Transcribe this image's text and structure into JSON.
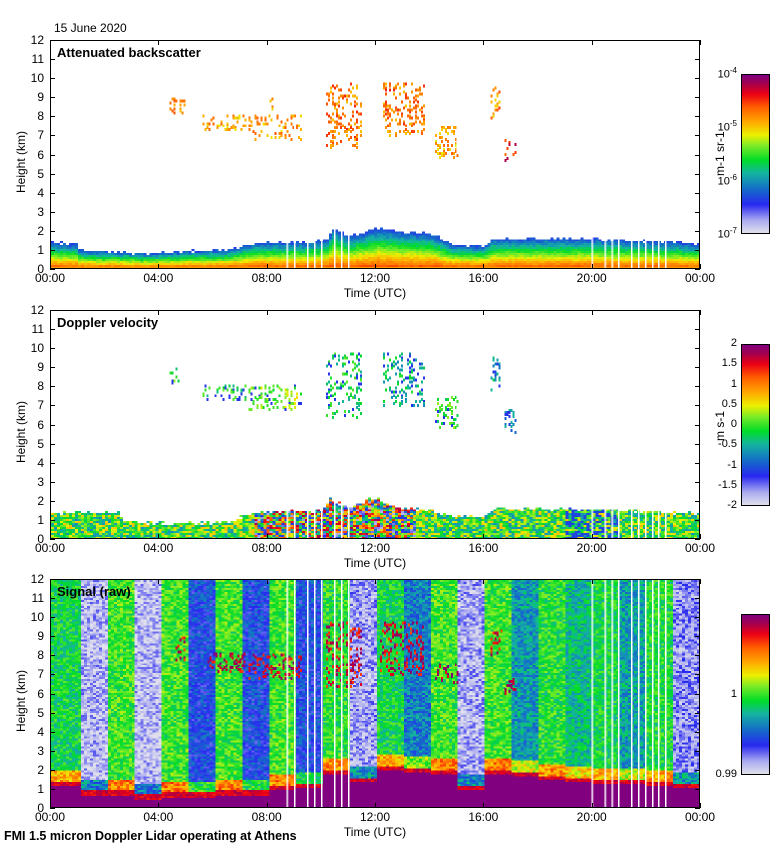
{
  "header": {
    "date": "15 June 2020"
  },
  "footer": {
    "caption": "FMI 1.5 micron Doppler Lidar operating at Athens"
  },
  "chart_data": [
    {
      "type": "heatmap",
      "title": "Attenuated backscatter",
      "xlabel": "Time (UTC)",
      "ylabel": "Height (km)",
      "x_ticks": [
        "00:00",
        "04:00",
        "08:00",
        "12:00",
        "16:00",
        "20:00",
        "00:00"
      ],
      "y_ticks": [
        "0",
        "1",
        "2",
        "3",
        "4",
        "5",
        "6",
        "7",
        "8",
        "9",
        "10",
        "11",
        "12"
      ],
      "xlim_hours": [
        0,
        24
      ],
      "ylim_km": [
        0,
        12
      ],
      "colorbar": {
        "label": "m-1 sr-1",
        "scale": "log",
        "range": [
          1e-07,
          0.0001
        ],
        "tick_labels": [
          {
            "base": "10",
            "exp": "-4",
            "value": 0.0001
          },
          {
            "base": "10",
            "exp": "-5",
            "value": 1e-05
          },
          {
            "base": "10",
            "exp": "-6",
            "value": 1e-06
          },
          {
            "base": "10",
            "exp": "-7",
            "value": 1e-07
          }
        ]
      },
      "boundary_layer_top_km": [
        [
          0,
          1.4
        ],
        [
          0.9,
          1.3
        ],
        [
          1.0,
          1.0
        ],
        [
          2.5,
          0.9
        ],
        [
          3.5,
          0.8
        ],
        [
          4.5,
          0.9
        ],
        [
          6.5,
          1.0
        ],
        [
          7.5,
          1.4
        ],
        [
          9.5,
          1.4
        ],
        [
          10.2,
          1.6
        ],
        [
          10.4,
          2.2
        ],
        [
          11.0,
          1.7
        ],
        [
          12.0,
          2.2
        ],
        [
          13.0,
          2.0
        ],
        [
          14.0,
          1.9
        ],
        [
          14.8,
          1.3
        ],
        [
          16.0,
          1.2
        ],
        [
          16.3,
          1.6
        ],
        [
          20.0,
          1.6
        ],
        [
          23.0,
          1.4
        ],
        [
          24.0,
          1.3
        ]
      ],
      "cloud_layers": [
        {
          "t": [
            4.4,
            5.0
          ],
          "z": [
            8.2,
            9.0
          ],
          "level": 0.72
        },
        {
          "t": [
            5.6,
            7.2
          ],
          "z": [
            7.3,
            8.1
          ],
          "level": 0.7
        },
        {
          "t": [
            7.3,
            9.3
          ],
          "z": [
            6.8,
            8.1
          ],
          "level": 0.72
        },
        {
          "t": [
            8.0,
            8.3
          ],
          "z": [
            8.4,
            9.2
          ],
          "level": 0.72
        },
        {
          "t": [
            10.2,
            11.5
          ],
          "z": [
            6.4,
            9.8
          ],
          "level": 0.76
        },
        {
          "t": [
            12.3,
            13.8
          ],
          "z": [
            7.0,
            9.8
          ],
          "level": 0.76
        },
        {
          "t": [
            14.2,
            15.1
          ],
          "z": [
            5.8,
            7.5
          ],
          "level": 0.7
        },
        {
          "t": [
            16.3,
            16.6
          ],
          "z": [
            7.8,
            9.6
          ],
          "level": 0.74
        },
        {
          "t": [
            16.8,
            17.2
          ],
          "z": [
            5.6,
            6.8
          ],
          "level": 0.86
        }
      ],
      "missing_profiles_hours": [
        8.7,
        9.0,
        9.5,
        9.75,
        10.0,
        10.5,
        10.75,
        11.0,
        20.0,
        20.5,
        20.75,
        21.0,
        21.5,
        21.75,
        22.0,
        22.25,
        22.5,
        22.75
      ]
    },
    {
      "type": "heatmap",
      "title": "Doppler velocity",
      "xlabel": "Time (UTC)",
      "ylabel": "Height (km)",
      "x_ticks": [
        "00:00",
        "04:00",
        "08:00",
        "12:00",
        "16:00",
        "20:00",
        "00:00"
      ],
      "y_ticks": [
        "0",
        "1",
        "2",
        "3",
        "4",
        "5",
        "6",
        "7",
        "8",
        "9",
        "10",
        "11",
        "12"
      ],
      "xlim_hours": [
        0,
        24
      ],
      "ylim_km": [
        0,
        12
      ],
      "colorbar": {
        "label": "m s-1",
        "scale": "linear",
        "range": [
          -2,
          2
        ],
        "tick_labels": [
          "2",
          "1.5",
          "1",
          "0.5",
          "0",
          "-0.5",
          "-1",
          "-1.5",
          "-2"
        ]
      },
      "boundary_layer_top_km": [
        [
          0,
          1.4
        ],
        [
          2.5,
          1.4
        ],
        [
          2.6,
          0.9
        ],
        [
          4.5,
          0.8
        ],
        [
          6.5,
          0.9
        ],
        [
          7.5,
          1.4
        ],
        [
          10.0,
          1.5
        ],
        [
          10.3,
          2.1
        ],
        [
          11.0,
          1.6
        ],
        [
          11.9,
          2.2
        ],
        [
          12.7,
          1.7
        ],
        [
          14.0,
          1.5
        ],
        [
          14.8,
          1.2
        ],
        [
          16.0,
          1.2
        ],
        [
          16.3,
          1.6
        ],
        [
          20.0,
          1.6
        ],
        [
          23.0,
          1.4
        ],
        [
          24.0,
          1.3
        ]
      ],
      "cloud_layers": [
        {
          "t": [
            4.4,
            5.0
          ],
          "z": [
            8.2,
            9.0
          ],
          "level": 0.5
        },
        {
          "t": [
            5.6,
            7.2
          ],
          "z": [
            7.3,
            8.1
          ],
          "level": 0.45
        },
        {
          "t": [
            7.3,
            9.3
          ],
          "z": [
            6.8,
            8.1
          ],
          "level": 0.55
        },
        {
          "t": [
            10.2,
            11.5
          ],
          "z": [
            6.4,
            9.8
          ],
          "level": 0.45
        },
        {
          "t": [
            12.3,
            13.8
          ],
          "z": [
            7.0,
            9.8
          ],
          "level": 0.4
        },
        {
          "t": [
            14.2,
            15.1
          ],
          "z": [
            5.8,
            7.5
          ],
          "level": 0.5
        },
        {
          "t": [
            16.3,
            16.6
          ],
          "z": [
            7.8,
            9.6
          ],
          "level": 0.35
        },
        {
          "t": [
            16.8,
            17.2
          ],
          "z": [
            5.6,
            6.8
          ],
          "level": 0.3
        }
      ],
      "missing_profiles_hours": [
        8.7,
        9.0,
        9.5,
        9.75,
        10.0,
        10.5,
        10.75,
        11.0,
        20.0,
        20.5,
        20.75,
        21.0,
        21.5,
        21.75,
        22.0,
        22.25,
        22.5,
        22.75
      ]
    },
    {
      "type": "heatmap",
      "title": "Signal (raw)",
      "xlabel": "Time (UTC)",
      "ylabel": "Height (km)",
      "x_ticks": [
        "00:00",
        "04:00",
        "08:00",
        "12:00",
        "16:00",
        "20:00",
        "00:00"
      ],
      "y_ticks": [
        "0",
        "1",
        "2",
        "3",
        "4",
        "5",
        "6",
        "7",
        "8",
        "9",
        "10",
        "11",
        "12"
      ],
      "xlim_hours": [
        0,
        24
      ],
      "ylim_km": [
        0,
        12
      ],
      "colorbar": {
        "label": "",
        "scale": "linear",
        "range": [
          0.99,
          1.01
        ],
        "tick_labels": [
          "1",
          "0.99"
        ]
      },
      "background_segments": [
        {
          "t": [
            0,
            1.0
          ],
          "level": 0.45,
          "pbl": 1.4
        },
        {
          "t": [
            1.0,
            2.0
          ],
          "level": 0.06,
          "pbl": 0.9
        },
        {
          "t": [
            2.0,
            3.0
          ],
          "level": 0.5,
          "pbl": 0.9
        },
        {
          "t": [
            3.0,
            4.0
          ],
          "level": 0.05,
          "pbl": 0.7
        },
        {
          "t": [
            4.0,
            5.0
          ],
          "level": 0.5,
          "pbl": 0.8
        },
        {
          "t": [
            5.0,
            6.0
          ],
          "level": 0.22,
          "pbl": 0.8
        },
        {
          "t": [
            6.0,
            7.0
          ],
          "level": 0.5,
          "pbl": 0.9
        },
        {
          "t": [
            7.0,
            8.0
          ],
          "level": 0.22,
          "pbl": 0.9
        },
        {
          "t": [
            8.0,
            9.0
          ],
          "level": 0.5,
          "pbl": 1.2
        },
        {
          "t": [
            9.0,
            10.0
          ],
          "level": 0.22,
          "pbl": 1.3
        },
        {
          "t": [
            10.0,
            11.0
          ],
          "level": 0.48,
          "pbl": 2.0
        },
        {
          "t": [
            11.0,
            12.0
          ],
          "level": 0.08,
          "pbl": 1.6
        },
        {
          "t": [
            12.0,
            13.0
          ],
          "level": 0.45,
          "pbl": 2.2
        },
        {
          "t": [
            13.0,
            14.0
          ],
          "level": 0.3,
          "pbl": 2.1
        },
        {
          "t": [
            14.0,
            15.0
          ],
          "level": 0.5,
          "pbl": 2.0
        },
        {
          "t": [
            15.0,
            16.0
          ],
          "level": 0.07,
          "pbl": 1.2
        },
        {
          "t": [
            16.0,
            17.0
          ],
          "level": 0.5,
          "pbl": 2.0
        },
        {
          "t": [
            17.0,
            18.0
          ],
          "level": 0.34,
          "pbl": 1.9
        },
        {
          "t": [
            18.0,
            19.0
          ],
          "level": 0.48,
          "pbl": 1.7
        },
        {
          "t": [
            19.0,
            20.0
          ],
          "level": 0.4,
          "pbl": 1.6
        },
        {
          "t": [
            20.0,
            21.0
          ],
          "level": 0.45,
          "pbl": 1.5
        },
        {
          "t": [
            21.0,
            22.0
          ],
          "level": 0.35,
          "pbl": 1.5
        },
        {
          "t": [
            22.0,
            23.0
          ],
          "level": 0.47,
          "pbl": 1.4
        },
        {
          "t": [
            23.0,
            24.0
          ],
          "level": 0.1,
          "pbl": 1.3
        }
      ],
      "cloud_layers": [
        {
          "t": [
            4.6,
            5.0
          ],
          "z": [
            7.8,
            9.0
          ],
          "level": 0.9
        },
        {
          "t": [
            5.8,
            7.2
          ],
          "z": [
            7.2,
            8.2
          ],
          "level": 0.92
        },
        {
          "t": [
            7.3,
            9.3
          ],
          "z": [
            6.8,
            8.1
          ],
          "level": 0.92
        },
        {
          "t": [
            10.2,
            11.5
          ],
          "z": [
            6.4,
            9.8
          ],
          "level": 0.9
        },
        {
          "t": [
            12.2,
            13.8
          ],
          "z": [
            7.0,
            9.8
          ],
          "level": 0.9
        },
        {
          "t": [
            14.2,
            15.1
          ],
          "z": [
            6.6,
            7.6
          ],
          "level": 0.95
        },
        {
          "t": [
            16.3,
            16.7
          ],
          "z": [
            8.0,
            9.6
          ],
          "level": 0.88
        },
        {
          "t": [
            16.8,
            17.2
          ],
          "z": [
            6.0,
            6.8
          ],
          "level": 0.95
        }
      ],
      "missing_profiles_hours": [
        8.7,
        9.0,
        9.5,
        9.75,
        10.0,
        10.5,
        10.75,
        11.0,
        20.0,
        20.5,
        20.75,
        21.0,
        21.5,
        21.75,
        22.0,
        22.25,
        22.5,
        22.75
      ]
    }
  ]
}
